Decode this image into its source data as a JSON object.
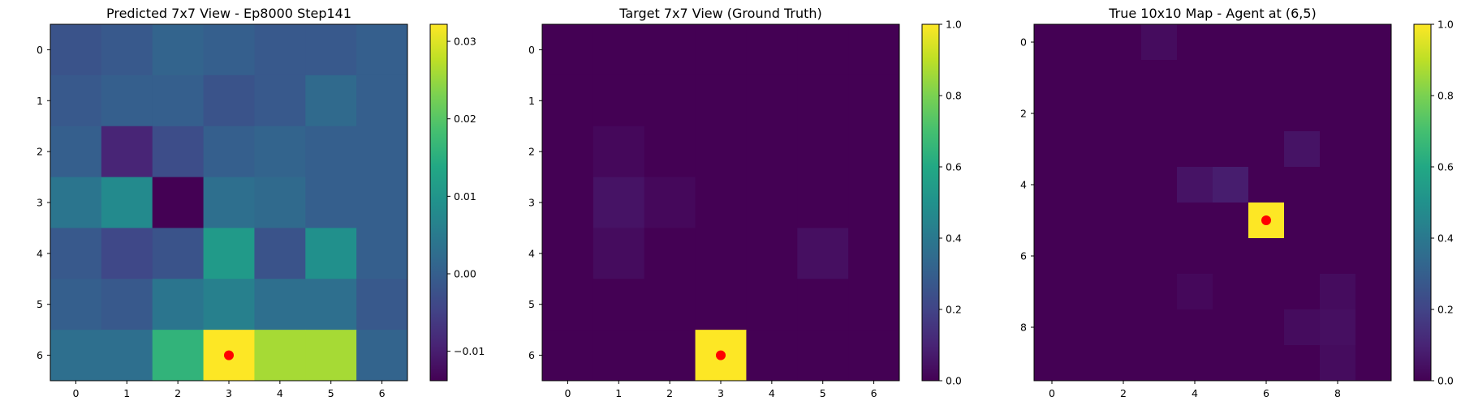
{
  "chart_data": [
    {
      "type": "heatmap",
      "title": "Predicted 7x7 View - Ep8000 Step141",
      "xticks": [
        "0",
        "1",
        "2",
        "3",
        "4",
        "5",
        "6"
      ],
      "yticks": [
        "0",
        "1",
        "2",
        "3",
        "4",
        "5",
        "6"
      ],
      "xlabel": "",
      "ylabel": "",
      "clim": [
        -0.0138,
        0.0322
      ],
      "colorbar_ticks": [
        0.03,
        0.02,
        0.01,
        0.0,
        -0.01
      ],
      "colorbar_labels": [
        "0.03",
        "0.02",
        "0.01",
        "0.00",
        "−0.01"
      ],
      "values": [
        [
          -0.002,
          -0.001,
          0.001,
          0.0,
          -0.001,
          -0.001,
          0.0
        ],
        [
          -0.001,
          0.0,
          0.0,
          -0.002,
          -0.001,
          0.002,
          0.0
        ],
        [
          0.0,
          -0.009,
          -0.003,
          0.0,
          0.001,
          0.0,
          0.0
        ],
        [
          0.004,
          0.008,
          -0.0138,
          0.003,
          0.002,
          0.0,
          0.0
        ],
        [
          -0.001,
          -0.004,
          -0.002,
          0.011,
          -0.002,
          0.009,
          0.0
        ],
        [
          0.0,
          -0.001,
          0.004,
          0.006,
          0.003,
          0.003,
          -0.001
        ],
        [
          0.003,
          0.003,
          0.016,
          0.0322,
          0.026,
          0.026,
          0.001
        ]
      ],
      "marker": {
        "x": 3,
        "y": 6,
        "color": "#ff0000"
      }
    },
    {
      "type": "heatmap",
      "title": "Target 7x7 View (Ground Truth)",
      "xticks": [
        "0",
        "1",
        "2",
        "3",
        "4",
        "5",
        "6"
      ],
      "yticks": [
        "0",
        "1",
        "2",
        "3",
        "4",
        "5",
        "6"
      ],
      "xlabel": "",
      "ylabel": "",
      "clim": [
        0.0,
        1.0
      ],
      "colorbar_ticks": [
        1.0,
        0.8,
        0.6,
        0.4,
        0.2,
        0.0
      ],
      "colorbar_labels": [
        "1.0",
        "0.8",
        "0.6",
        "0.4",
        "0.2",
        "0.0"
      ],
      "values": [
        [
          0,
          0,
          0,
          0,
          0,
          0,
          0
        ],
        [
          0,
          0,
          0,
          0,
          0,
          0,
          0
        ],
        [
          0,
          0.02,
          0,
          0,
          0,
          0,
          0
        ],
        [
          0,
          0.05,
          0.02,
          0,
          0,
          0,
          0
        ],
        [
          0,
          0.03,
          0,
          0,
          0,
          0.04,
          0
        ],
        [
          0,
          0,
          0,
          0,
          0,
          0,
          0
        ],
        [
          0,
          0,
          0,
          1.0,
          0,
          0,
          0
        ]
      ],
      "marker": {
        "x": 3,
        "y": 6,
        "color": "#ff0000"
      }
    },
    {
      "type": "heatmap",
      "title": "True 10x10 Map - Agent at (6,5)",
      "xticks": [
        "0",
        "2",
        "4",
        "6",
        "8"
      ],
      "yticks": [
        "0",
        "2",
        "4",
        "6",
        "8"
      ],
      "xlabel": "",
      "ylabel": "",
      "clim": [
        0.0,
        1.0
      ],
      "colorbar_ticks": [
        1.0,
        0.8,
        0.6,
        0.4,
        0.2,
        0.0
      ],
      "colorbar_labels": [
        "1.0",
        "0.8",
        "0.6",
        "0.4",
        "0.2",
        "0.0"
      ],
      "values": [
        [
          0,
          0,
          0,
          0.03,
          0,
          0,
          0,
          0,
          0,
          0
        ],
        [
          0,
          0,
          0,
          0,
          0,
          0,
          0,
          0,
          0,
          0
        ],
        [
          0,
          0,
          0,
          0,
          0,
          0,
          0,
          0,
          0,
          0
        ],
        [
          0,
          0,
          0,
          0,
          0,
          0,
          0,
          0.05,
          0,
          0
        ],
        [
          0,
          0,
          0,
          0,
          0.05,
          0.08,
          0,
          0,
          0,
          0
        ],
        [
          0,
          0,
          0,
          0,
          0,
          0,
          1.0,
          0,
          0,
          0
        ],
        [
          0,
          0,
          0,
          0,
          0,
          0,
          0,
          0,
          0,
          0
        ],
        [
          0,
          0,
          0,
          0,
          0.02,
          0,
          0,
          0,
          0.03,
          0
        ],
        [
          0,
          0,
          0,
          0,
          0,
          0,
          0,
          0.03,
          0.04,
          0
        ],
        [
          0,
          0,
          0,
          0,
          0,
          0,
          0,
          0,
          0.03,
          0
        ]
      ],
      "marker": {
        "x": 6,
        "y": 5,
        "color": "#ff0000"
      }
    }
  ],
  "colormap": "viridis"
}
